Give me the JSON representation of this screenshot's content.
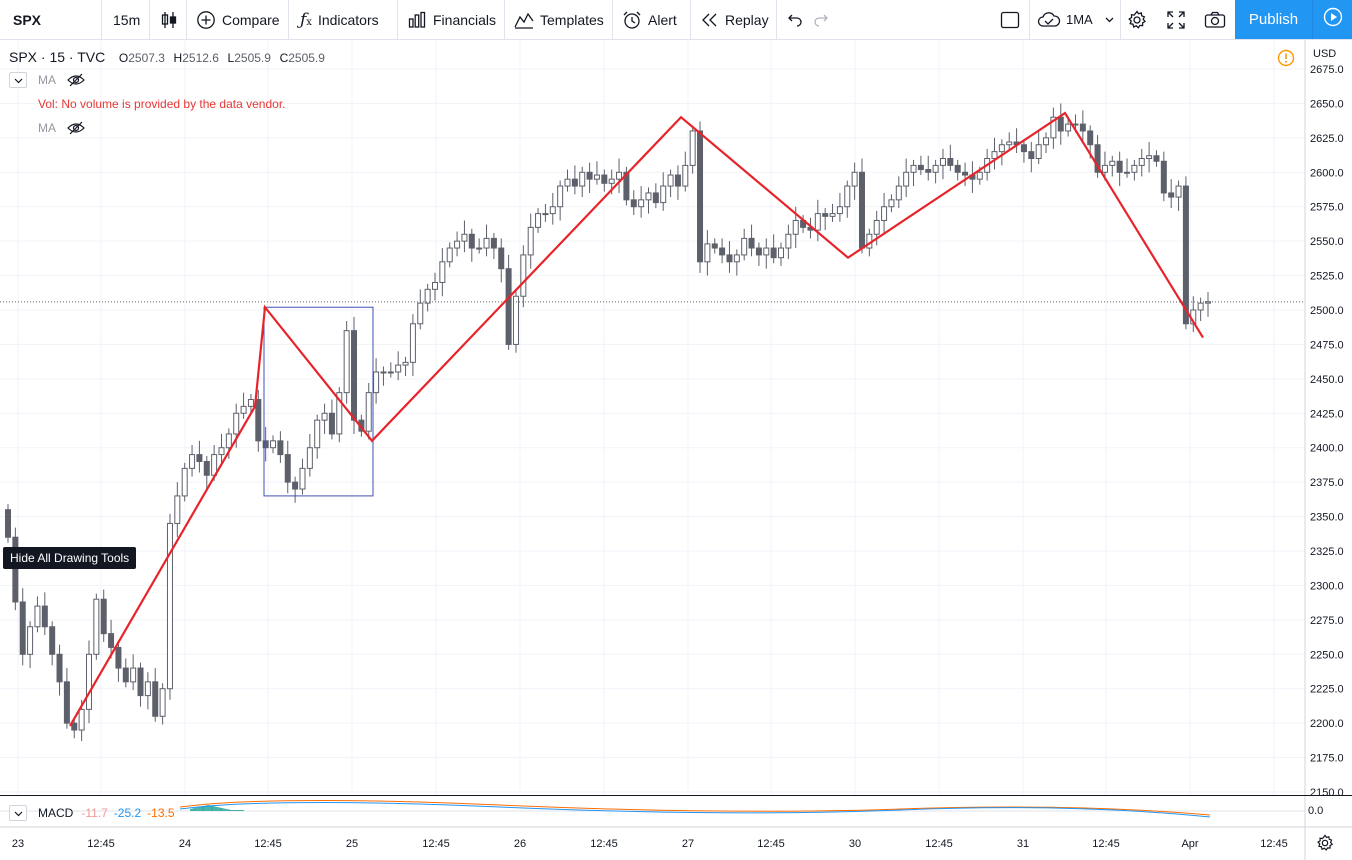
{
  "toolbar": {
    "symbol": "SPX",
    "interval": "15m",
    "compare": "Compare",
    "indicators": "Indicators",
    "financials": "Financials",
    "templates": "Templates",
    "alert": "Alert",
    "replay": "Replay",
    "ma_layout": "1MA",
    "publish": "Publish"
  },
  "legend": {
    "symbol": "SPX",
    "interval": "15",
    "source": "TVC",
    "open_label": "O",
    "open": "2507.3",
    "high_label": "H",
    "high": "2512.6",
    "low_label": "L",
    "low": "2505.9",
    "close_label": "C",
    "close": "2505.9",
    "ma1": "MA",
    "vol_msg": "Vol: No volume is provided by the data vendor.",
    "ma2": "MA"
  },
  "tooltip": "Hide All Drawing Tools",
  "macd": {
    "label": "MACD",
    "v1": "-11.7",
    "v2": "-25.2",
    "v3": "-13.5",
    "axis_label": "0.0"
  },
  "currency": "USD",
  "colors": {
    "accent": "#2196f3",
    "drawing": "#e8232a",
    "candle_up": "#ffffff",
    "candle_down": "#5d606b",
    "box": "#3f51b5",
    "warning": "#ff9800"
  },
  "chart_data": {
    "type": "candlestick",
    "symbol": "SPX",
    "currency": "USD",
    "y_ticks": [
      2675,
      2650,
      2625,
      2600,
      2575,
      2550,
      2525,
      2500,
      2475,
      2450,
      2425,
      2400,
      2375,
      2350,
      2325,
      2300,
      2275,
      2250,
      2225,
      2200,
      2175,
      2150
    ],
    "x_ticks": [
      "23",
      "12:45",
      "24",
      "12:45",
      "25",
      "12:45",
      "26",
      "12:45",
      "27",
      "12:45",
      "30",
      "12:45",
      "31",
      "12:45",
      "Apr",
      "12:45"
    ],
    "last_price": 2505.9,
    "grid": true,
    "zigzag_prices": [
      2198,
      2430,
      2502,
      2405,
      2640,
      2538,
      2643,
      2480
    ],
    "box_prices": [
      2502,
      2365
    ],
    "closes": [
      2335,
      2288,
      2250,
      2270,
      2285,
      2270,
      2250,
      2230,
      2200,
      2195,
      2210,
      2250,
      2290,
      2265,
      2255,
      2240,
      2230,
      2240,
      2220,
      2230,
      2205,
      2225,
      2345,
      2365,
      2385,
      2395,
      2390,
      2380,
      2395,
      2400,
      2410,
      2425,
      2430,
      2435,
      2405,
      2400,
      2405,
      2395,
      2375,
      2370,
      2385,
      2400,
      2420,
      2425,
      2410,
      2440,
      2485,
      2420,
      2412,
      2440,
      2455,
      2455,
      2455,
      2460,
      2462,
      2490,
      2505,
      2515,
      2520,
      2535,
      2545,
      2550,
      2555,
      2545,
      2545,
      2552,
      2545,
      2530,
      2475,
      2510,
      2540,
      2560,
      2570,
      2570,
      2575,
      2590,
      2595,
      2590,
      2600,
      2595,
      2598,
      2592,
      2595,
      2600,
      2580,
      2575,
      2580,
      2585,
      2578,
      2590,
      2598,
      2590,
      2605,
      2630,
      2535,
      2548,
      2545,
      2540,
      2535,
      2540,
      2552,
      2545,
      2540,
      2545,
      2538,
      2545,
      2555,
      2565,
      2560,
      2558,
      2570,
      2568,
      2570,
      2575,
      2590,
      2600,
      2545,
      2555,
      2565,
      2575,
      2580,
      2590,
      2600,
      2605,
      2602,
      2600,
      2605,
      2610,
      2605,
      2600,
      2598,
      2595,
      2600,
      2610,
      2615,
      2620,
      2622,
      2620,
      2615,
      2610,
      2620,
      2625,
      2640,
      2630,
      2635,
      2635,
      2630,
      2620,
      2600,
      2605,
      2608,
      2600,
      2600,
      2605,
      2610,
      2612,
      2608,
      2585,
      2582,
      2590,
      2490,
      2500,
      2505,
      2506
    ]
  }
}
